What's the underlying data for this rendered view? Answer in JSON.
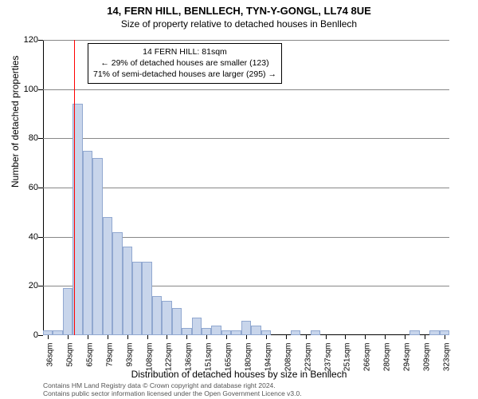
{
  "title": {
    "main": "14, FERN HILL, BENLLECH, TYN-Y-GONGL, LL74 8UE",
    "sub": "Size of property relative to detached houses in Benllech"
  },
  "chart": {
    "type": "histogram",
    "bar_fill": "#c8d5eb",
    "bar_border": "#91a8d0",
    "background": "#ffffff",
    "grid_color": "#888888",
    "ref_line_color": "#ff0000",
    "ylim": [
      0,
      120
    ],
    "ytick_step": 20,
    "ylabel": "Number of detached properties",
    "xlabel": "Distribution of detached houses by size in Benllech",
    "x_ticks": [
      "36sqm",
      "50sqm",
      "65sqm",
      "79sqm",
      "93sqm",
      "108sqm",
      "122sqm",
      "136sqm",
      "151sqm",
      "165sqm",
      "180sqm",
      "194sqm",
      "208sqm",
      "223sqm",
      "237sqm",
      "251sqm",
      "266sqm",
      "280sqm",
      "294sqm",
      "309sqm",
      "323sqm"
    ],
    "values": [
      2,
      2,
      19,
      94,
      75,
      72,
      48,
      42,
      36,
      30,
      30,
      16,
      14,
      11,
      3,
      7,
      3,
      4,
      2,
      2,
      6,
      4,
      2,
      0,
      0,
      2,
      0,
      2,
      0,
      0,
      0,
      0,
      0,
      0,
      0,
      0,
      0,
      2,
      0,
      2,
      2
    ],
    "ref_line_bin": 3.15,
    "info_box": {
      "line1": "14 FERN HILL: 81sqm",
      "line2": "← 29% of detached houses are smaller (123)",
      "line3": "71% of semi-detached houses are larger (295) →"
    }
  },
  "footer": {
    "line1": "Contains HM Land Registry data © Crown copyright and database right 2024.",
    "line2": "Contains public sector information licensed under the Open Government Licence v3.0."
  }
}
